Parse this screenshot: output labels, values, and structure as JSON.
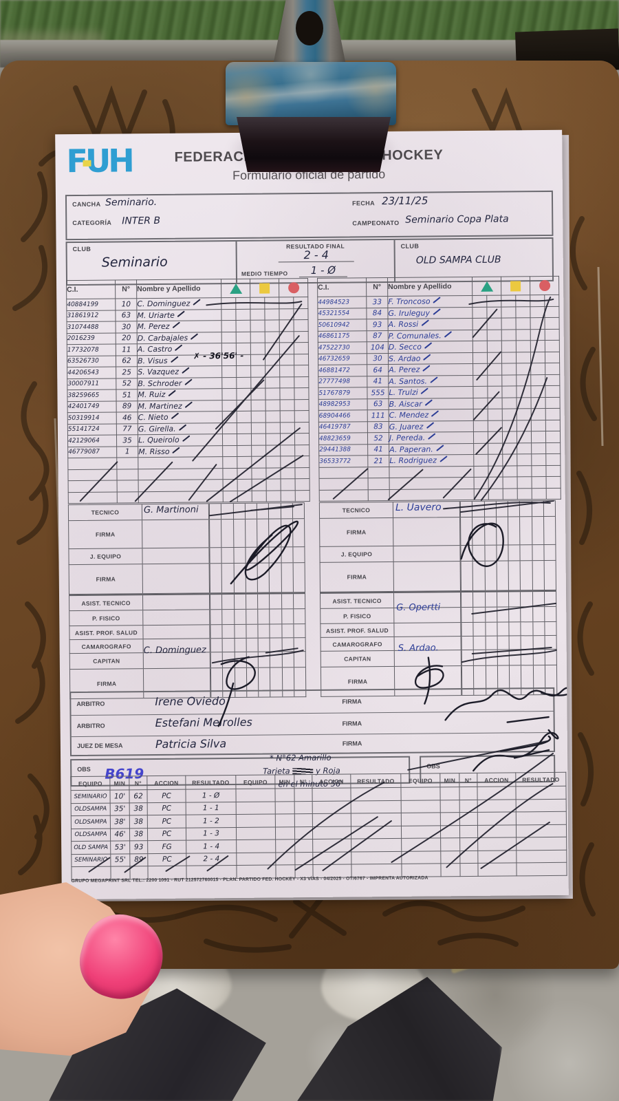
{
  "header": {
    "logo": "FUH",
    "title": "FEDERACIÓN URUGUAYA DE HOCKEY",
    "subtitle": "Formulario oficial de partido"
  },
  "match_info": {
    "cancha_label": "CANCHA",
    "cancha": "Seminario.",
    "fecha_label": "FECHA",
    "fecha": "23/11/25",
    "categoria_label": "CATEGORÍA",
    "categoria": "INTER B",
    "campeonato_label": "CAMPEONATO",
    "campeonato": "Seminario Copa Plata"
  },
  "score": {
    "club_label": "CLUB",
    "club_left": "Seminario",
    "resultado_final_label": "RESULTADO FINAL",
    "resultado_final": "2 - 4",
    "medio_tiempo_label": "MEDIO TIEMPO",
    "medio_tiempo": "1 - Ø",
    "club_right": "OLD SAMPA CLUB"
  },
  "roster_headers": {
    "ci": "C.I.",
    "num": "N°",
    "name": "Nombre y Apellido"
  },
  "roster_left": [
    {
      "ci": "40884199",
      "num": "10",
      "name": "C. Dominguez"
    },
    {
      "ci": "31861912",
      "num": "63",
      "name": "M. Uriarte"
    },
    {
      "ci": "31074488",
      "num": "30",
      "name": "M. Perez"
    },
    {
      "ci": "2016239",
      "num": "20",
      "name": "D. Carbajales"
    },
    {
      "ci": "17732078",
      "num": "11",
      "name": "A. Castro"
    },
    {
      "ci": "63526730",
      "num": "62",
      "name": "B. Visus"
    },
    {
      "ci": "44206543",
      "num": "25",
      "name": "S. Vazquez"
    },
    {
      "ci": "30007911",
      "num": "52",
      "name": "B. Schroder"
    },
    {
      "ci": "38259665",
      "num": "51",
      "name": "M. Ruiz"
    },
    {
      "ci": "42401749",
      "num": "89",
      "name": "M. Martinez"
    },
    {
      "ci": "50319914",
      "num": "46",
      "name": "C. Nieto"
    },
    {
      "ci": "55141724",
      "num": "77",
      "name": "G. Girella."
    },
    {
      "ci": "42129064",
      "num": "35",
      "name": "L. Queirolo"
    },
    {
      "ci": "46779087",
      "num": "1",
      "name": "M. Risso"
    }
  ],
  "roster_right": [
    {
      "ci": "44984523",
      "num": "33",
      "name": "F. Troncoso"
    },
    {
      "ci": "45321554",
      "num": "84",
      "name": "G. Iruleguy"
    },
    {
      "ci": "50610942",
      "num": "93",
      "name": "A. Rossi"
    },
    {
      "ci": "46861175",
      "num": "87",
      "name": "P. Comunales."
    },
    {
      "ci": "47522730",
      "num": "104",
      "name": "D. Secco"
    },
    {
      "ci": "46732659",
      "num": "30",
      "name": "S. Ardao"
    },
    {
      "ci": "46881472",
      "num": "64",
      "name": "A. Perez"
    },
    {
      "ci": "27777498",
      "num": "41",
      "name": "A. Santos."
    },
    {
      "ci": "51767879",
      "num": "555",
      "name": "L. Trulzi"
    },
    {
      "ci": "48982953",
      "num": "63",
      "name": "B. Aiscar"
    },
    {
      "ci": "68904466",
      "num": "111",
      "name": "C. Mendez"
    },
    {
      "ci": "46419787",
      "num": "83",
      "name": "G. Juarez"
    },
    {
      "ci": "48823659",
      "num": "52",
      "name": "J. Pereda."
    },
    {
      "ci": "29441388",
      "num": "41",
      "name": "A. Paperan."
    },
    {
      "ci": "36533772",
      "num": "21",
      "name": "L. Rodriguez"
    }
  ],
  "card_annotation": "✗ - 36'56' -",
  "staff_labels": [
    "TECNICO",
    "FIRMA",
    "J. EQUIPO",
    "FIRMA",
    "ASIST. TECNICO",
    "P. FISICO",
    "ASIST. PROF. SALUD",
    "CAMAROGRAFO",
    "CAPITAN",
    "FIRMA"
  ],
  "staff_left_values": {
    "0": "G. Martinoni",
    "8": "C. Dominguez"
  },
  "staff_right_values": {
    "0": "L. Uavero",
    "5": "G. Opertti",
    "8": "S. Ardao."
  },
  "officials": {
    "firma_label": "FIRMA",
    "obs_label": "OBS",
    "rows": [
      {
        "label": "ARBITRO",
        "value": "Irene Oviedo"
      },
      {
        "label": "ARBITRO",
        "value": "Estefani Meirolles"
      },
      {
        "label": "JUEZ DE MESA",
        "value": "Patricia Silva"
      }
    ],
    "obs_code": "B619",
    "obs_line1": "* N°62 Amarillo",
    "obs_line2a": "Tarjeta",
    "obs_line2b": "y Roja",
    "obs_line3": "en el minuto 56'"
  },
  "goals": {
    "headers": [
      "EQUIPO",
      "MIN",
      "N°",
      "ACCION",
      "RESULTADO"
    ],
    "rows": [
      [
        "SEMINARIO",
        "10'",
        "62",
        "PC",
        "1 - Ø"
      ],
      [
        "OLDSAMPA",
        "35'",
        "38",
        "PC",
        "1 - 1"
      ],
      [
        "OLDSAMPA",
        "38'",
        "38",
        "PC",
        "1 - 2"
      ],
      [
        "OLDSAMPA",
        "46'",
        "38",
        "PC",
        "1 - 3"
      ],
      [
        "OLD SAMPA",
        "53'",
        "93",
        "FG",
        "1 - 4"
      ],
      [
        "SEMINARIO",
        "55'",
        "89",
        "PC",
        "2 - 4"
      ]
    ]
  },
  "footer": "GRUPO MEGAPRINT SRL TEL.: 2200 1091 - RUT 212572760015 - PLAN. PARTIDO FED. HOCKEY - X3 VÍAS - 04/2025 - OT/6767 - IMPRENTA AUTORIZADA",
  "colors": {
    "logo_blue": "#2f9ed2",
    "triangle_green": "#2aa183",
    "square_yellow": "#ecc93f",
    "circle_red": "#d95f63",
    "ink_left": "#23263f",
    "ink_right": "#2c3d96",
    "obs_blue": "#4444cc",
    "nail_pink": "#ef4078"
  }
}
